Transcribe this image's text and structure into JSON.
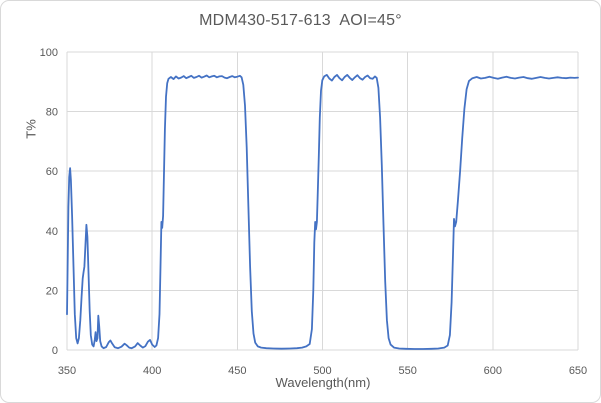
{
  "figure": {
    "background": "#ffffff",
    "border_color": "#d9d9d9"
  },
  "chart_data": {
    "type": "line",
    "title": "MDM430-517-613  AOI=45°",
    "xlabel": "Wavelength(nm)",
    "ylabel": "T%",
    "xlim": [
      350,
      650
    ],
    "ylim": [
      0,
      100
    ],
    "x_ticks": [
      350,
      400,
      450,
      500,
      550,
      600,
      650
    ],
    "y_ticks": [
      0,
      20,
      40,
      60,
      80,
      100
    ],
    "grid": true,
    "legend": false,
    "colors": {
      "line": "#4472C4",
      "grid": "#d9d9d9",
      "text": "#595959",
      "title": "#595959",
      "border": "#d9d9d9"
    },
    "passbands_pct_T": [
      {
        "range_nm": [
          409,
          452
        ],
        "T": 91.5
      },
      {
        "range_nm": [
          500,
          532
        ],
        "T": 91.5
      },
      {
        "range_nm": [
          586,
          650
        ],
        "T": 91.3
      }
    ],
    "series": [
      {
        "name": "T",
        "points": [
          [
            350,
            12
          ],
          [
            350.4,
            30
          ],
          [
            350.8,
            48
          ],
          [
            351.3,
            58
          ],
          [
            351.8,
            61
          ],
          [
            352.3,
            57
          ],
          [
            353,
            45
          ],
          [
            353.8,
            28
          ],
          [
            354.6,
            12
          ],
          [
            355.4,
            4
          ],
          [
            356.2,
            2.2
          ],
          [
            357,
            4
          ],
          [
            357.8,
            10
          ],
          [
            358.6,
            18
          ],
          [
            359.2,
            24
          ],
          [
            359.7,
            26
          ],
          [
            360.2,
            28
          ],
          [
            360.8,
            35
          ],
          [
            361.4,
            42
          ],
          [
            362,
            38
          ],
          [
            362.6,
            26
          ],
          [
            363.3,
            13
          ],
          [
            364,
            5
          ],
          [
            364.8,
            1.8
          ],
          [
            365.6,
            1.2
          ],
          [
            366.3,
            3.5
          ],
          [
            366.8,
            6
          ],
          [
            367.3,
            3
          ],
          [
            367.9,
            4
          ],
          [
            368.4,
            11.5
          ],
          [
            368.9,
            8
          ],
          [
            369.5,
            3
          ],
          [
            370.3,
            1.2
          ],
          [
            371.5,
            0.6
          ],
          [
            373,
            1
          ],
          [
            374.5,
            2.6
          ],
          [
            375.5,
            3.2
          ],
          [
            376.5,
            2.2
          ],
          [
            378,
            0.9
          ],
          [
            380,
            0.6
          ],
          [
            382,
            1.1
          ],
          [
            383.8,
            2.1
          ],
          [
            385,
            1.6
          ],
          [
            386.5,
            0.8
          ],
          [
            388,
            0.6
          ],
          [
            390,
            1.2
          ],
          [
            391.5,
            2.3
          ],
          [
            393,
            1.5
          ],
          [
            394.5,
            0.8
          ],
          [
            396,
            1.3
          ],
          [
            397.5,
            2.8
          ],
          [
            398.7,
            3.4
          ],
          [
            400,
            1.8
          ],
          [
            401.5,
            1
          ],
          [
            402.5,
            1.5
          ],
          [
            403.5,
            4
          ],
          [
            404.3,
            12
          ],
          [
            404.9,
            28
          ],
          [
            405.4,
            43
          ],
          [
            405.9,
            41
          ],
          [
            406.4,
            45
          ],
          [
            406.9,
            58
          ],
          [
            407.5,
            74
          ],
          [
            408.1,
            85
          ],
          [
            408.8,
            89.5
          ],
          [
            409.6,
            91
          ],
          [
            411,
            91.6
          ],
          [
            412.5,
            90.9
          ],
          [
            414,
            91.8
          ],
          [
            415.5,
            91.1
          ],
          [
            417,
            91.4
          ],
          [
            418.5,
            91.9
          ],
          [
            420,
            91.2
          ],
          [
            421.5,
            91.6
          ],
          [
            423,
            92
          ],
          [
            424.5,
            91.3
          ],
          [
            426,
            91.6
          ],
          [
            427.5,
            92
          ],
          [
            429,
            91.4
          ],
          [
            430.5,
            91.7
          ],
          [
            432,
            92.1
          ],
          [
            433.5,
            91.5
          ],
          [
            435,
            91.8
          ],
          [
            436.5,
            92
          ],
          [
            438,
            91.5
          ],
          [
            439.5,
            91.8
          ],
          [
            441,
            91.9
          ],
          [
            442.5,
            91.4
          ],
          [
            444,
            91.2
          ],
          [
            445.5,
            91.6
          ],
          [
            447,
            91.9
          ],
          [
            448.5,
            91.5
          ],
          [
            450,
            91.7
          ],
          [
            451.5,
            92
          ],
          [
            452.5,
            91.5
          ],
          [
            453.5,
            89
          ],
          [
            454.5,
            82
          ],
          [
            455.5,
            68
          ],
          [
            456.5,
            48
          ],
          [
            457.5,
            28
          ],
          [
            458.5,
            13
          ],
          [
            459.5,
            5.5
          ],
          [
            460.5,
            2.5
          ],
          [
            462,
            1.2
          ],
          [
            464,
            0.8
          ],
          [
            467,
            0.6
          ],
          [
            471,
            0.5
          ],
          [
            476,
            0.45
          ],
          [
            481,
            0.5
          ],
          [
            485,
            0.6
          ],
          [
            488,
            0.8
          ],
          [
            490.5,
            1.2
          ],
          [
            492.5,
            2
          ],
          [
            493.8,
            7
          ],
          [
            494.6,
            20
          ],
          [
            495.2,
            36
          ],
          [
            495.7,
            43
          ],
          [
            496.2,
            40.5
          ],
          [
            496.7,
            43
          ],
          [
            497.2,
            52
          ],
          [
            497.8,
            65
          ],
          [
            498.4,
            78
          ],
          [
            499.1,
            87
          ],
          [
            499.9,
            90.5
          ],
          [
            501,
            91.8
          ],
          [
            502.5,
            92.3
          ],
          [
            504,
            91.1
          ],
          [
            505.5,
            90.4
          ],
          [
            507,
            91.6
          ],
          [
            508.5,
            92.3
          ],
          [
            510,
            91.2
          ],
          [
            511.5,
            90.5
          ],
          [
            513,
            91.6
          ],
          [
            514.5,
            92.3
          ],
          [
            516,
            91.3
          ],
          [
            517.5,
            90.6
          ],
          [
            519,
            91.5
          ],
          [
            520.5,
            92.2
          ],
          [
            522,
            91.2
          ],
          [
            523.5,
            90.7
          ],
          [
            525,
            91.6
          ],
          [
            526.5,
            92.1
          ],
          [
            528,
            91.2
          ],
          [
            529.5,
            91
          ],
          [
            530.8,
            91.8
          ],
          [
            531.8,
            91.3
          ],
          [
            532.8,
            88
          ],
          [
            533.8,
            78
          ],
          [
            534.8,
            62
          ],
          [
            535.8,
            42
          ],
          [
            536.8,
            23
          ],
          [
            537.8,
            10
          ],
          [
            538.8,
            4
          ],
          [
            540,
            1.8
          ],
          [
            542,
            0.8
          ],
          [
            545,
            0.5
          ],
          [
            549,
            0.4
          ],
          [
            554,
            0.35
          ],
          [
            559,
            0.35
          ],
          [
            564,
            0.4
          ],
          [
            568,
            0.5
          ],
          [
            571.5,
            0.8
          ],
          [
            573.5,
            1.5
          ],
          [
            574.8,
            5
          ],
          [
            575.8,
            16
          ],
          [
            576.6,
            32
          ],
          [
            577.2,
            44
          ],
          [
            577.8,
            41.5
          ],
          [
            578.5,
            43
          ],
          [
            579.5,
            50
          ],
          [
            580.8,
            60
          ],
          [
            582,
            71
          ],
          [
            583.3,
            81
          ],
          [
            584.6,
            87.5
          ],
          [
            586,
            90.3
          ],
          [
            588,
            91.2
          ],
          [
            590.5,
            91.6
          ],
          [
            593,
            91.1
          ],
          [
            595.5,
            91.3
          ],
          [
            598,
            91.7
          ],
          [
            600.5,
            91.3
          ],
          [
            603,
            91
          ],
          [
            605.5,
            91.4
          ],
          [
            608,
            91.7
          ],
          [
            610.5,
            91.3
          ],
          [
            613,
            91.1
          ],
          [
            615.5,
            91.4
          ],
          [
            618,
            91.6
          ],
          [
            620.5,
            91.2
          ],
          [
            623,
            91
          ],
          [
            625.5,
            91.3
          ],
          [
            628,
            91.6
          ],
          [
            630.5,
            91.3
          ],
          [
            633,
            91.1
          ],
          [
            635.5,
            91.3
          ],
          [
            638,
            91.5
          ],
          [
            640.5,
            91.3
          ],
          [
            643,
            91.2
          ],
          [
            645.5,
            91.4
          ],
          [
            648,
            91.3
          ],
          [
            650,
            91.4
          ]
        ]
      }
    ]
  }
}
